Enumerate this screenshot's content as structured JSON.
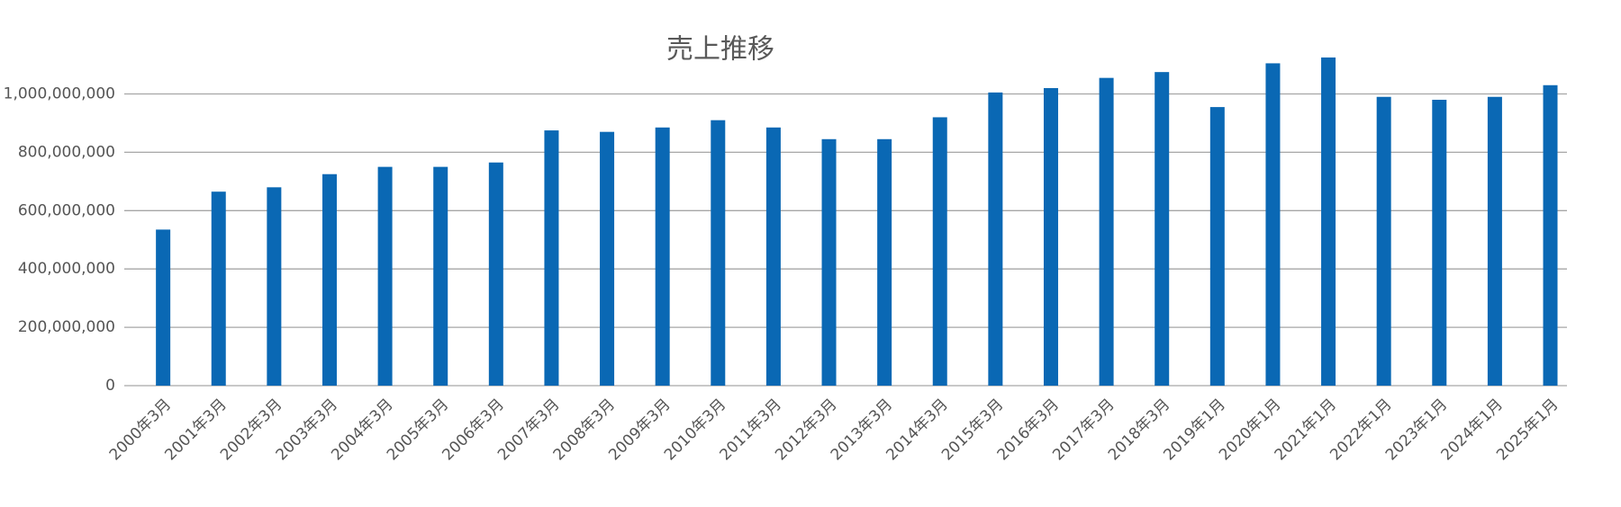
{
  "chart_data": {
    "type": "bar",
    "title": "売上推移",
    "categories": [
      "2000年3月",
      "2001年3月",
      "2002年3月",
      "2003年3月",
      "2004年3月",
      "2005年3月",
      "2006年3月",
      "2007年3月",
      "2008年3月",
      "2009年3月",
      "2010年3月",
      "2011年3月",
      "2012年3月",
      "2013年3月",
      "2014年3月",
      "2015年3月",
      "2016年3月",
      "2017年3月",
      "2018年3月",
      "2019年1月",
      "2020年1月",
      "2021年1月",
      "2022年1月",
      "2023年1月",
      "2024年1月",
      "2025年1月"
    ],
    "values": [
      535000000,
      665000000,
      680000000,
      725000000,
      750000000,
      750000000,
      765000000,
      875000000,
      870000000,
      885000000,
      910000000,
      885000000,
      845000000,
      845000000,
      920000000,
      1005000000,
      1020000000,
      1055000000,
      1075000000,
      955000000,
      1105000000,
      1125000000,
      990000000,
      980000000,
      990000000,
      1030000000
    ],
    "color": "#0a68b4",
    "ylim": [
      0,
      1200000000
    ],
    "yticks": [
      0,
      {
        "value": 200000000,
        "label": "200,000,000"
      },
      {
        "value": 400000000,
        "label": "400,000,000"
      },
      {
        "value": 600000000,
        "label": "600,000,000"
      },
      {
        "value": 800000000,
        "label": "800,000,000"
      },
      {
        "value": 1000000000,
        "label": "1,000,000,000"
      }
    ],
    "grid": true
  }
}
